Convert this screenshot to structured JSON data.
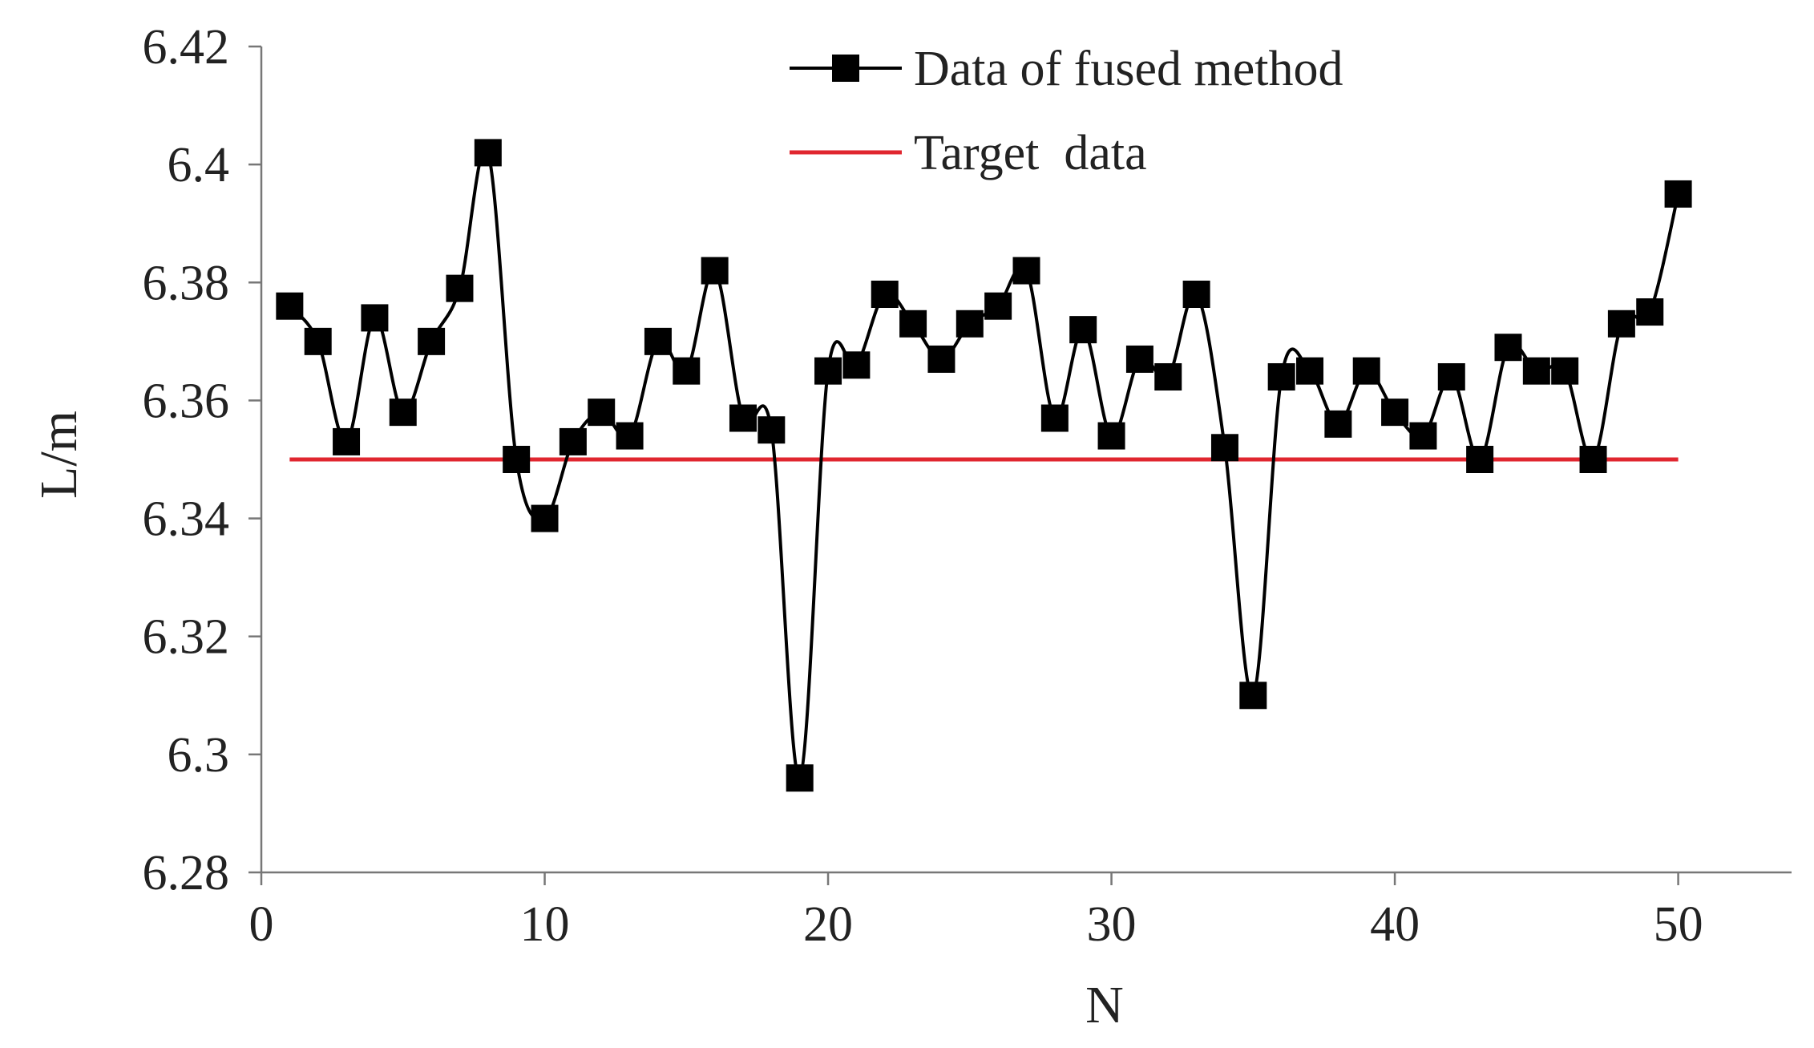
{
  "chart_data": {
    "type": "line",
    "title": "",
    "xlabel": "N",
    "ylabel": "L/m",
    "xlim": [
      0,
      54
    ],
    "ylim": [
      6.28,
      6.42
    ],
    "xticks": [
      0,
      10,
      20,
      30,
      40,
      50
    ],
    "xtick_labels": [
      "0",
      "10",
      "20",
      "30",
      "40",
      "50"
    ],
    "yticks": [
      6.28,
      6.3,
      6.32,
      6.34,
      6.36,
      6.38,
      6.4,
      6.42
    ],
    "ytick_labels": [
      "6.28",
      "6.3",
      "6.32",
      "6.34",
      "6.36",
      "6.38",
      "6.4",
      "6.42"
    ],
    "grid": false,
    "legend_position": "top-center",
    "series": [
      {
        "name": "Data of fused method",
        "color": "#000000",
        "marker": "square",
        "smooth": true,
        "x": [
          1,
          2,
          3,
          4,
          5,
          6,
          7,
          8,
          9,
          10,
          11,
          12,
          13,
          14,
          15,
          16,
          17,
          18,
          19,
          20,
          21,
          22,
          23,
          24,
          25,
          26,
          27,
          28,
          29,
          30,
          31,
          32,
          33,
          34,
          35,
          36,
          37,
          38,
          39,
          40,
          41,
          42,
          43,
          44,
          45,
          46,
          47,
          48,
          49,
          50
        ],
        "y": [
          6.376,
          6.37,
          6.353,
          6.374,
          6.358,
          6.37,
          6.379,
          6.402,
          6.35,
          6.34,
          6.353,
          6.358,
          6.354,
          6.37,
          6.365,
          6.382,
          6.357,
          6.355,
          6.296,
          6.365,
          6.366,
          6.378,
          6.373,
          6.367,
          6.373,
          6.376,
          6.382,
          6.357,
          6.372,
          6.354,
          6.367,
          6.364,
          6.378,
          6.352,
          6.31,
          6.364,
          6.365,
          6.356,
          6.365,
          6.358,
          6.354,
          6.364,
          6.35,
          6.369,
          6.365,
          6.365,
          6.35,
          6.373,
          6.375,
          6.395
        ]
      },
      {
        "name": "Target  data",
        "color": "#e0262f",
        "marker": "none",
        "smooth": false,
        "x": [
          1,
          50
        ],
        "y": [
          6.35,
          6.35
        ]
      }
    ]
  }
}
